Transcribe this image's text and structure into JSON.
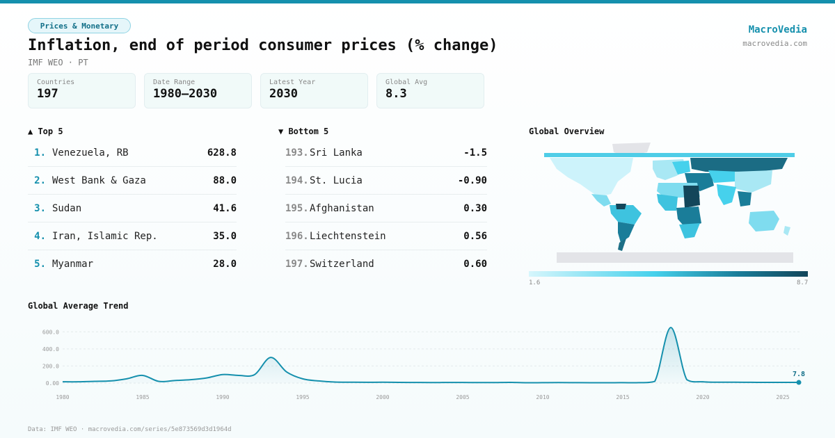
{
  "header": {
    "category": "Prices & Monetary",
    "title": "Inflation, end of period consumer prices (% change)",
    "subtitle": "IMF WEO · PT"
  },
  "brand": {
    "name": "MacroVedia",
    "url": "macrovedia.com"
  },
  "stats": [
    {
      "label": "Countries",
      "value": "197"
    },
    {
      "label": "Date Range",
      "value": "1980–2030"
    },
    {
      "label": "Latest Year",
      "value": "2030"
    },
    {
      "label": "Global Avg",
      "value": "8.3"
    }
  ],
  "top5": {
    "heading": "▲ Top 5",
    "items": [
      {
        "rank": "1.",
        "name": "Venezuela, RB",
        "value": "628.8"
      },
      {
        "rank": "2.",
        "name": "West Bank & Gaza",
        "value": "88.0"
      },
      {
        "rank": "3.",
        "name": "Sudan",
        "value": "41.6"
      },
      {
        "rank": "4.",
        "name": "Iran, Islamic Rep.",
        "value": "35.0"
      },
      {
        "rank": "5.",
        "name": "Myanmar",
        "value": "28.0"
      }
    ]
  },
  "bottom5": {
    "heading": "▼ Bottom 5",
    "items": [
      {
        "rank": "193.",
        "name": "Sri Lanka",
        "value": "-1.5"
      },
      {
        "rank": "194.",
        "name": "St. Lucia",
        "value": "-0.90"
      },
      {
        "rank": "195.",
        "name": "Afghanistan",
        "value": "0.30"
      },
      {
        "rank": "196.",
        "name": "Liechtenstein",
        "value": "0.56"
      },
      {
        "rank": "197.",
        "name": "Switzerland",
        "value": "0.60"
      }
    ]
  },
  "map": {
    "heading": "Global Overview",
    "legend_min": "1.6",
    "legend_max": "8.7",
    "colors": {
      "low": "#d6f6fc",
      "mid": "#46d1ec",
      "high": "#1a7d99",
      "max": "#13465a",
      "nodata": "#e3e4e8"
    }
  },
  "chart_data": {
    "type": "area",
    "title": "Global Average Trend",
    "x": [
      1980,
      1981,
      1982,
      1983,
      1984,
      1985,
      1986,
      1987,
      1988,
      1989,
      1990,
      1991,
      1992,
      1993,
      1994,
      1995,
      1996,
      1997,
      1998,
      1999,
      2000,
      2001,
      2002,
      2003,
      2004,
      2005,
      2006,
      2007,
      2008,
      2009,
      2010,
      2011,
      2012,
      2013,
      2014,
      2015,
      2016,
      2017,
      2018,
      2019,
      2020,
      2021,
      2022,
      2023,
      2024,
      2025,
      2026
    ],
    "y": [
      15,
      15,
      20,
      25,
      50,
      90,
      20,
      30,
      40,
      60,
      100,
      90,
      100,
      300,
      130,
      50,
      25,
      12,
      10,
      9,
      10,
      8,
      7,
      6,
      7,
      7,
      6,
      6,
      8,
      4,
      5,
      6,
      5,
      4,
      4,
      5,
      5,
      20,
      650,
      40,
      15,
      10,
      10,
      9,
      8,
      8,
      7.8
    ],
    "xticks": [
      "1980",
      "1985",
      "1990",
      "1995",
      "2000",
      "2005",
      "2010",
      "2015",
      "2020",
      "2025"
    ],
    "yticks": [
      "0.00",
      "200.0",
      "400.0",
      "600.0"
    ],
    "ylim": [
      0,
      700
    ],
    "last_label": "7.8",
    "color": "#1590ad",
    "grid": true
  },
  "footer": "Data: IMF WEO · macrovedia.com/series/5e873569d3d1964d"
}
